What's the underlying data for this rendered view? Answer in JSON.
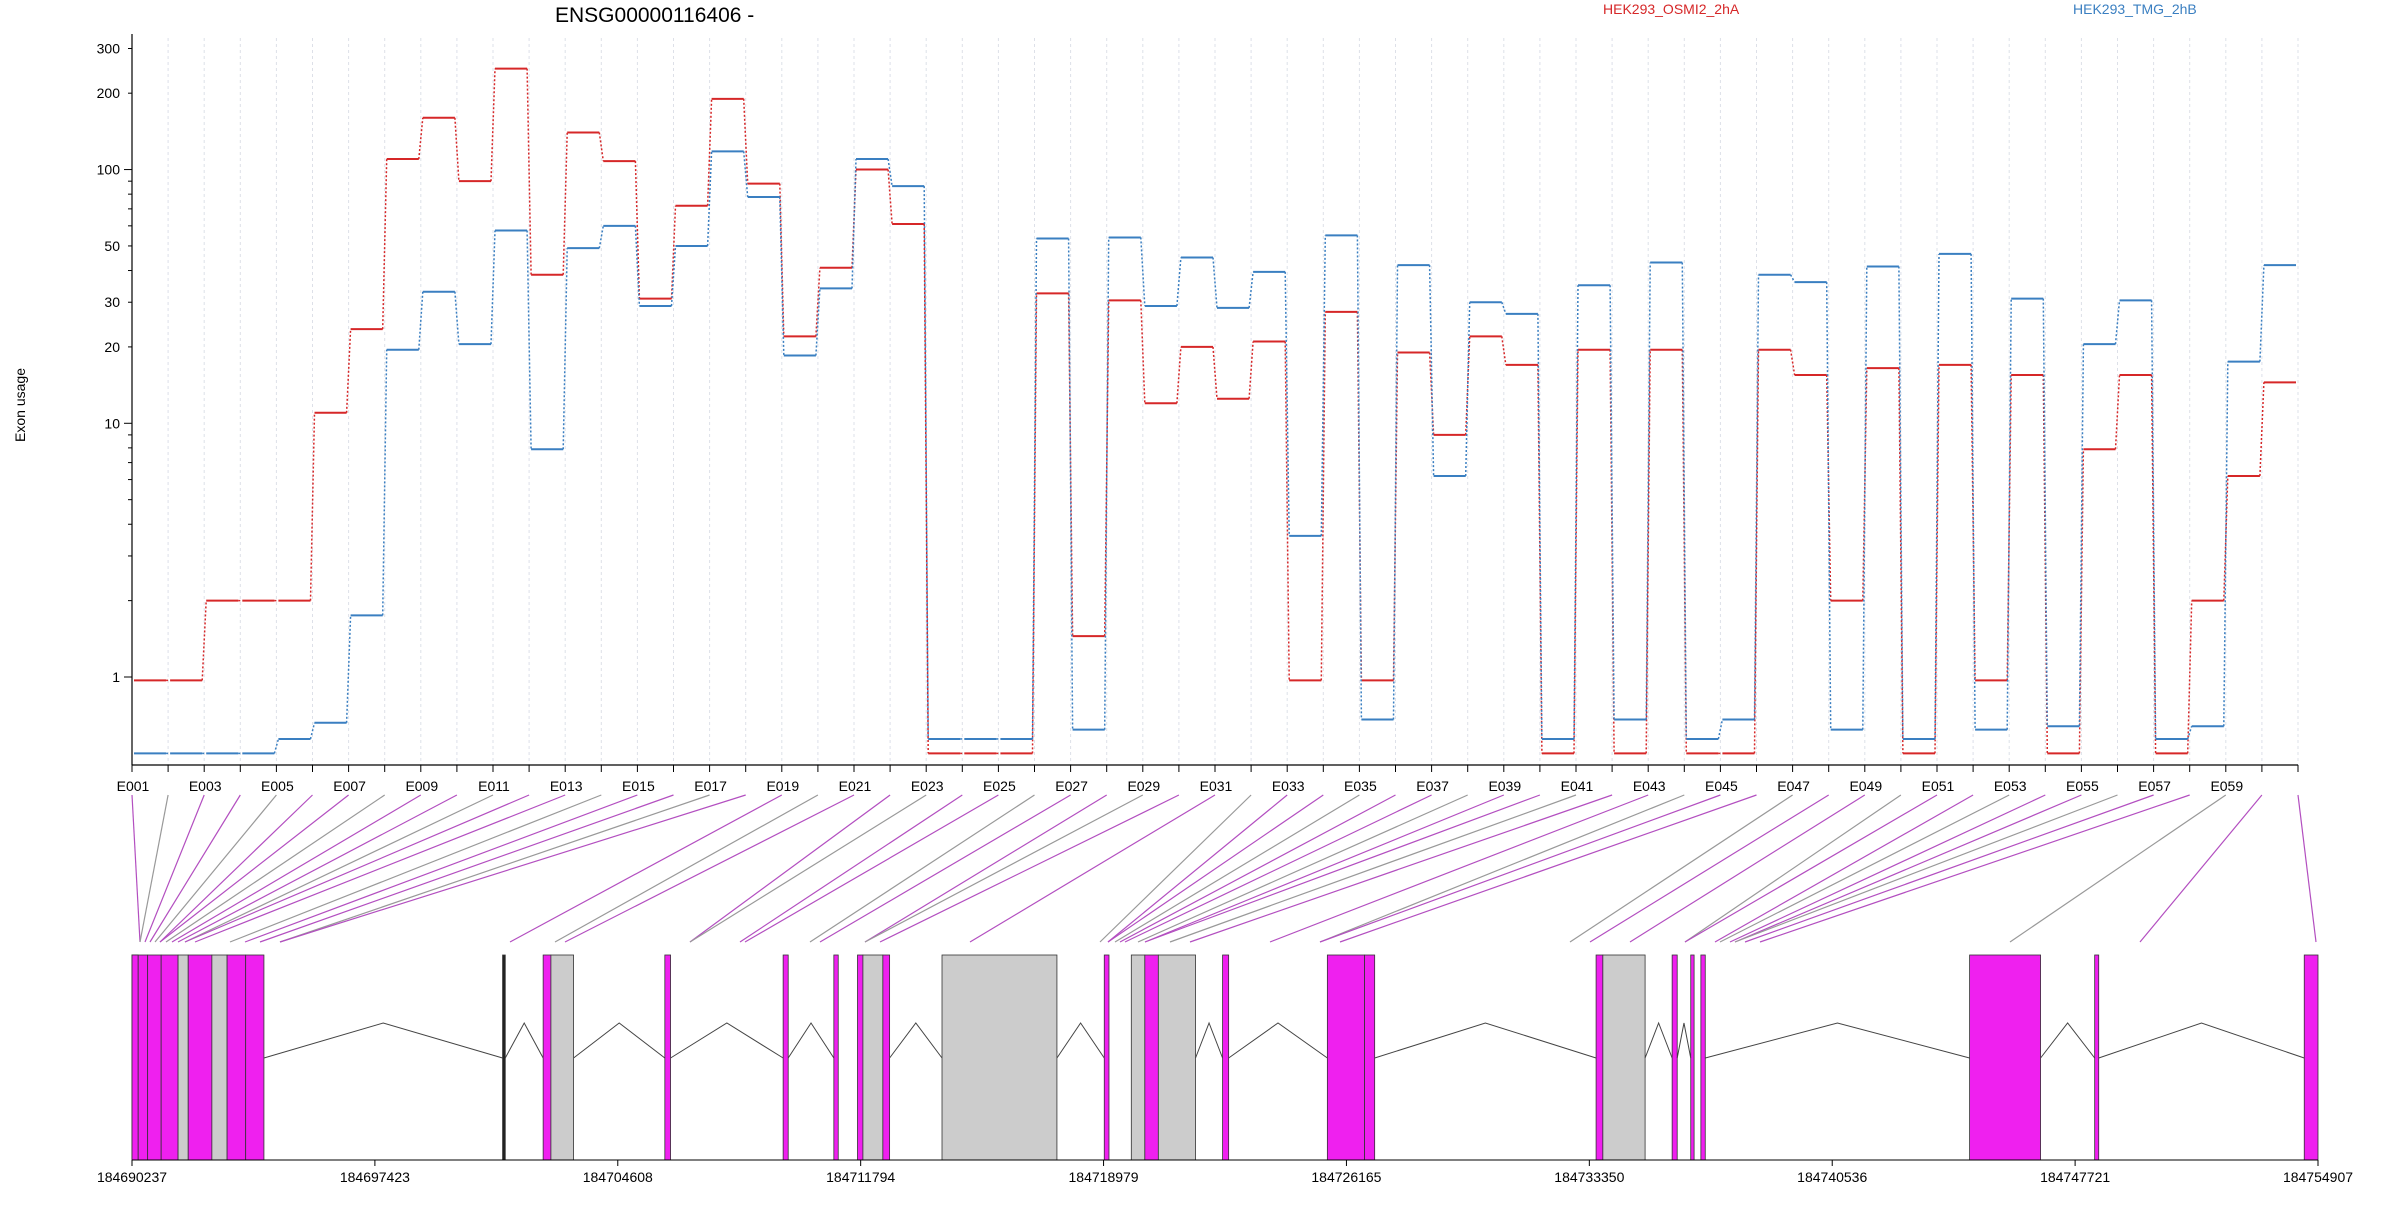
{
  "chart_data": {
    "type": "line",
    "title": "ENSG00000116406 -",
    "ylabel": "Exon usage",
    "yscale": "log",
    "ylim": [
      0.45,
      330
    ],
    "y_ticks": [
      "1",
      "10",
      "20",
      "30",
      "50",
      "100",
      "200",
      "300"
    ],
    "categories": [
      "E001",
      "E002",
      "E003",
      "E004",
      "E005",
      "E006",
      "E007",
      "E008",
      "E009",
      "E010",
      "E011",
      "E012",
      "E013",
      "E014",
      "E015",
      "E016",
      "E017",
      "E018",
      "E019",
      "E020",
      "E021",
      "E022",
      "E023",
      "E024",
      "E025",
      "E026",
      "E027",
      "E028",
      "E029",
      "E030",
      "E031",
      "E032",
      "E033",
      "E034",
      "E035",
      "E036",
      "E037",
      "E038",
      "E039",
      "E040",
      "E041",
      "E042",
      "E043",
      "E044",
      "E045",
      "E046",
      "E047",
      "E048",
      "E049",
      "E050",
      "E051",
      "E052",
      "E053",
      "E054",
      "E055",
      "E056",
      "E057",
      "E058",
      "E059",
      "E060"
    ],
    "x_tick_labels": [
      "E001",
      "E003",
      "E005",
      "E007",
      "E009",
      "E011",
      "E013",
      "E015",
      "E017",
      "E019",
      "E021",
      "E023",
      "E025",
      "E027",
      "E029",
      "E031",
      "E033",
      "E035",
      "E037",
      "E039",
      "E041",
      "E043",
      "E045",
      "E047",
      "E049",
      "E051",
      "E053",
      "E055",
      "E057",
      "E059"
    ],
    "series": [
      {
        "name": "HEK293_OSMI2_2hA",
        "color": "#d62728",
        "values": [
          0.97,
          0.97,
          2,
          2,
          2,
          11,
          23.5,
          110,
          160,
          90,
          250,
          38.5,
          140,
          108,
          31,
          72,
          190,
          88,
          22,
          41,
          100,
          61,
          0.5,
          0.5,
          0.5,
          32.5,
          1.45,
          30.5,
          12,
          20,
          12.5,
          21,
          0.97,
          27.5,
          0.97,
          19,
          9,
          22,
          17,
          0.5,
          19.5,
          0.5,
          19.5,
          0.5,
          0.5,
          19.5,
          15.5,
          2,
          16.5,
          0.5,
          17,
          0.97,
          15.5,
          0.5,
          7.9,
          15.5,
          0.5,
          2,
          6.2,
          14.5
        ]
      },
      {
        "name": "HEK293_TMG_2hB",
        "color": "#3a7fc1",
        "values": [
          0.5,
          0.5,
          0.5,
          0.5,
          0.57,
          0.66,
          1.75,
          19.5,
          33,
          20.5,
          57.5,
          7.9,
          49,
          60,
          29,
          50,
          118,
          78,
          18.5,
          34,
          110,
          86,
          0.57,
          0.57,
          0.57,
          53.5,
          0.62,
          54,
          29,
          45,
          28.5,
          39.5,
          3.6,
          55,
          0.68,
          42,
          6.2,
          30,
          27,
          0.57,
          35,
          0.68,
          43,
          0.57,
          0.68,
          38.5,
          36,
          0.62,
          41.5,
          0.57,
          46.5,
          0.62,
          31,
          0.64,
          20.5,
          30.5,
          0.57,
          0.64,
          17.5,
          42
        ]
      }
    ],
    "gene_model": {
      "coordinate_labels": [
        "184690237",
        "184697423",
        "184704608",
        "184711794",
        "184718979",
        "184726165",
        "184733350",
        "184740536",
        "184747721",
        "184754907"
      ],
      "range": [
        184690237,
        184754907
      ],
      "highlight_color": "#ef20ef",
      "exon_color": "#cccccc"
    }
  }
}
